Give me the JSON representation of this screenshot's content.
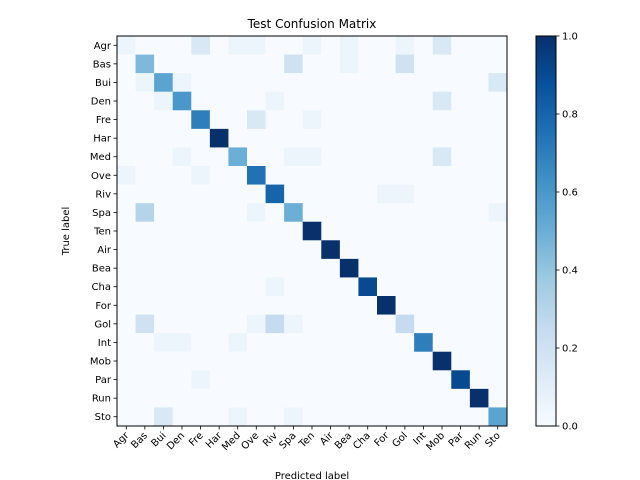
{
  "chart_data": {
    "type": "heatmap",
    "title": "Test Confusion Matrix",
    "xlabel": "Predicted label",
    "ylabel": "True label",
    "labels": [
      "Agr",
      "Bas",
      "Bui",
      "Den",
      "Fre",
      "Har",
      "Med",
      "Ove",
      "Riv",
      "Spa",
      "Ten",
      "Air",
      "Bea",
      "Cha",
      "For",
      "Gol",
      "Int",
      "Mob",
      "Par",
      "Run",
      "Sto"
    ],
    "colorbar": {
      "min": 0.0,
      "max": 1.0,
      "ticks": [
        "0.0",
        "0.2",
        "0.4",
        "0.6",
        "0.8",
        "1.0"
      ],
      "colormap": "Blues"
    },
    "matrix": [
      [
        0.05,
        0,
        0,
        0,
        0.15,
        0,
        0.05,
        0.05,
        0,
        0,
        0.05,
        0,
        0.05,
        0,
        0,
        0.05,
        0,
        0.15,
        0,
        0,
        0
      ],
      [
        0,
        0.45,
        0,
        0,
        0,
        0,
        0,
        0,
        0,
        0.2,
        0,
        0,
        0.05,
        0,
        0,
        0.2,
        0,
        0,
        0,
        0,
        0
      ],
      [
        0,
        0.05,
        0.55,
        0.05,
        0,
        0,
        0,
        0,
        0,
        0,
        0,
        0,
        0,
        0,
        0,
        0,
        0,
        0,
        0,
        0,
        0.15
      ],
      [
        0,
        0,
        0.05,
        0.6,
        0,
        0,
        0,
        0,
        0.05,
        0,
        0,
        0,
        0,
        0,
        0,
        0,
        0,
        0.15,
        0,
        0,
        0
      ],
      [
        0,
        0,
        0,
        0,
        0.7,
        0,
        0,
        0.15,
        0,
        0,
        0.05,
        0,
        0,
        0,
        0,
        0,
        0,
        0,
        0,
        0,
        0
      ],
      [
        0,
        0,
        0,
        0,
        0,
        1.0,
        0,
        0,
        0,
        0,
        0,
        0,
        0,
        0,
        0,
        0,
        0,
        0,
        0,
        0,
        0
      ],
      [
        0,
        0,
        0,
        0.05,
        0,
        0,
        0.5,
        0,
        0,
        0.05,
        0.05,
        0,
        0,
        0,
        0,
        0,
        0,
        0.15,
        0,
        0,
        0
      ],
      [
        0.05,
        0,
        0,
        0,
        0.05,
        0,
        0,
        0.75,
        0,
        0,
        0,
        0,
        0,
        0,
        0,
        0,
        0,
        0,
        0,
        0,
        0
      ],
      [
        0,
        0,
        0,
        0,
        0,
        0,
        0,
        0,
        0.8,
        0,
        0,
        0,
        0,
        0,
        0.05,
        0.05,
        0,
        0,
        0,
        0,
        0
      ],
      [
        0,
        0.3,
        0,
        0,
        0,
        0,
        0,
        0.05,
        0,
        0.5,
        0,
        0,
        0,
        0,
        0,
        0,
        0,
        0,
        0,
        0,
        0.05
      ],
      [
        0,
        0,
        0,
        0,
        0,
        0,
        0,
        0,
        0,
        0,
        1.0,
        0,
        0,
        0,
        0,
        0,
        0,
        0,
        0,
        0,
        0
      ],
      [
        0,
        0,
        0,
        0,
        0,
        0,
        0,
        0,
        0,
        0,
        0,
        1.0,
        0,
        0,
        0,
        0,
        0,
        0,
        0,
        0,
        0
      ],
      [
        0,
        0,
        0,
        0,
        0,
        0,
        0,
        0,
        0,
        0,
        0,
        0,
        1.0,
        0,
        0,
        0,
        0,
        0,
        0,
        0,
        0
      ],
      [
        0,
        0,
        0,
        0,
        0,
        0,
        0,
        0,
        0.05,
        0,
        0,
        0,
        0,
        0.9,
        0,
        0,
        0,
        0,
        0,
        0,
        0
      ],
      [
        0,
        0,
        0,
        0,
        0,
        0,
        0,
        0,
        0,
        0,
        0,
        0,
        0,
        0,
        1.0,
        0,
        0,
        0,
        0,
        0,
        0
      ],
      [
        0,
        0.2,
        0,
        0,
        0,
        0,
        0,
        0.05,
        0.25,
        0.05,
        0,
        0,
        0,
        0,
        0,
        0.25,
        0,
        0,
        0,
        0,
        0
      ],
      [
        0,
        0,
        0.05,
        0.05,
        0,
        0,
        0.05,
        0,
        0,
        0,
        0,
        0,
        0,
        0,
        0,
        0,
        0.7,
        0,
        0,
        0,
        0
      ],
      [
        0,
        0,
        0,
        0,
        0,
        0,
        0,
        0,
        0,
        0,
        0,
        0,
        0,
        0,
        0,
        0,
        0,
        1.0,
        0,
        0,
        0
      ],
      [
        0,
        0,
        0,
        0,
        0.05,
        0,
        0,
        0,
        0,
        0,
        0,
        0,
        0,
        0,
        0,
        0,
        0,
        0,
        0.9,
        0,
        0
      ],
      [
        0,
        0,
        0,
        0,
        0,
        0,
        0,
        0,
        0,
        0,
        0,
        0,
        0,
        0,
        0,
        0,
        0,
        0,
        0,
        1.0,
        0
      ],
      [
        0,
        0,
        0.15,
        0,
        0,
        0,
        0.05,
        0,
        0,
        0.05,
        0,
        0,
        0,
        0,
        0,
        0,
        0,
        0,
        0,
        0,
        0.55
      ]
    ]
  }
}
